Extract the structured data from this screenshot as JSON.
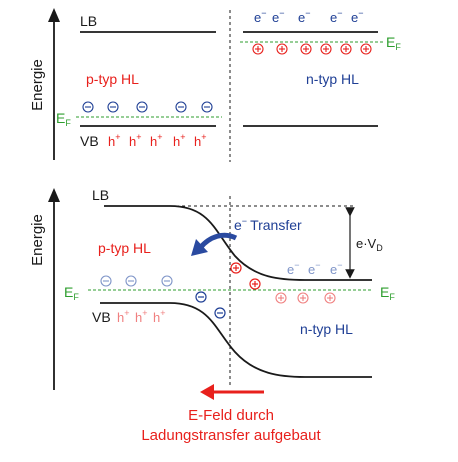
{
  "colors": {
    "black": "#1a1a1a",
    "red": "#e8201c",
    "blue": "#1f3f95",
    "green": "#2e9e2e",
    "pink": "#f08080",
    "lightblue": "#7f95c8",
    "arrow_blue": "#2a4aa0"
  },
  "top": {
    "axis_label": "Energie",
    "lb": "LB",
    "vb": "VB",
    "ef": "E",
    "ef_sub": "F",
    "p_label": "p-typ HL",
    "n_label": "n-typ HL",
    "electron": "e",
    "electron_sup": "−",
    "electron_count": 5,
    "hole": "h",
    "hole_sup": "+",
    "hole_count": 5,
    "minus_symbol": "−",
    "minus_count": 5,
    "plus_symbol": "+",
    "plus_count": 6
  },
  "bottom": {
    "axis_label": "Energie",
    "lb": "LB",
    "vb": "VB",
    "ef": "E",
    "ef_sub": "F",
    "p_label": "p-typ HL",
    "n_label": "n-typ HL",
    "transfer_e": "e",
    "transfer_sup": "−",
    "transfer_word": "Transfer",
    "voltage_e": "e·V",
    "voltage_sub": "D",
    "electron": "e",
    "electron_sup": "−",
    "electron_count": 3,
    "hole": "h",
    "hole_sup": "+",
    "hole_count": 3,
    "minus_symbol": "−",
    "plus_symbol": "+",
    "caption_line1": "E-Feld durch",
    "caption_line2": "Ladungstransfer aufgebaut"
  }
}
